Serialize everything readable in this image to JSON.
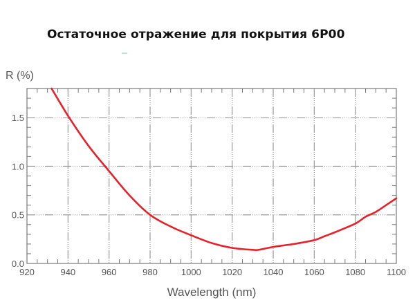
{
  "page": {
    "title": "Остаточное отражение для покрытия 6P00"
  },
  "chart_data": {
    "type": "line",
    "title": "Остаточное отражение для покрытия 6P00",
    "xlabel": "Wavelength (nm)",
    "ylabel": "R (%)",
    "xlim": [
      920,
      1100
    ],
    "ylim": [
      0,
      1.8
    ],
    "x_ticks": [
      920,
      940,
      960,
      980,
      1000,
      1020,
      1040,
      1060,
      1080,
      1100
    ],
    "x_tick_labels": [
      "920",
      "940",
      "960",
      "980",
      "1000",
      "1020",
      "1040",
      "1060",
      "1080",
      "1100"
    ],
    "y_ticks": [
      0.0,
      0.5,
      1.0,
      1.5
    ],
    "y_tick_labels": [
      "0.0",
      "0.5",
      "1.0",
      "1.5"
    ],
    "grid": true,
    "legend": null,
    "series": [
      {
        "name": "6P00",
        "color": "#e8202a",
        "x": [
          932,
          940,
          950,
          960,
          970,
          980,
          990,
          1000,
          1010,
          1020,
          1030,
          1033,
          1040,
          1050,
          1060,
          1065,
          1070,
          1080,
          1085,
          1090,
          1095,
          1100
        ],
        "values": [
          1.8,
          1.52,
          1.21,
          0.95,
          0.7,
          0.5,
          0.38,
          0.29,
          0.21,
          0.16,
          0.14,
          0.14,
          0.17,
          0.2,
          0.24,
          0.28,
          0.32,
          0.41,
          0.48,
          0.53,
          0.6,
          0.67
        ]
      }
    ]
  },
  "colors": {
    "curve": "#e8202a",
    "axis": "#777777",
    "grid": "#999999",
    "text": "#555555"
  }
}
